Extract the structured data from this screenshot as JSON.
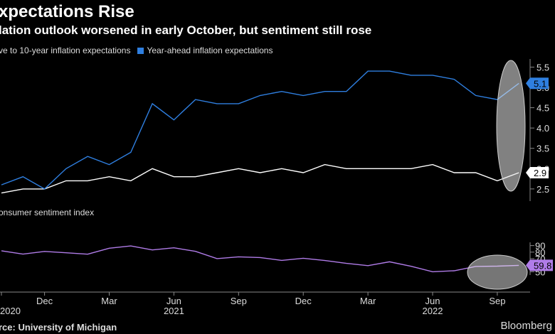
{
  "header": {
    "title": "xpectations Rise",
    "subtitle": "lation outlook worsened in early October, but sentiment still rose"
  },
  "footer": {
    "source": "rce: University of Michigan",
    "brand": "Bloomberg"
  },
  "colors": {
    "background": "#000000",
    "five_to_ten": "#ffffff",
    "year_ahead": "#2f7fe0",
    "sentiment": "#b07ce8",
    "axis": "#888888"
  },
  "chart_data": [
    {
      "type": "line",
      "legend_position": "top-left",
      "x": [
        "2020-10",
        "2020-11",
        "2020-12",
        "2021-01",
        "2021-02",
        "2021-03",
        "2021-04",
        "2021-05",
        "2021-06",
        "2021-07",
        "2021-08",
        "2021-09",
        "2021-10",
        "2021-11",
        "2021-12",
        "2022-01",
        "2022-02",
        "2022-03",
        "2022-04",
        "2022-05",
        "2022-06",
        "2022-07",
        "2022-08",
        "2022-09",
        "2022-10"
      ],
      "series": [
        {
          "name": "ve to 10-year inflation expectations",
          "color": "#ffffff",
          "end_label": "2.9",
          "values": [
            2.4,
            2.5,
            2.5,
            2.7,
            2.7,
            2.8,
            2.7,
            3.0,
            2.8,
            2.8,
            2.9,
            3.0,
            2.9,
            3.0,
            2.9,
            3.1,
            3.0,
            3.0,
            3.0,
            3.0,
            3.1,
            2.9,
            2.9,
            2.7,
            2.9
          ]
        },
        {
          "name": "Year-ahead inflation expectations",
          "color": "#2f7fe0",
          "end_label": "5.1",
          "values": [
            2.6,
            2.8,
            2.5,
            3.0,
            3.3,
            3.1,
            3.4,
            4.6,
            4.2,
            4.7,
            4.6,
            4.6,
            4.8,
            4.9,
            4.8,
            4.9,
            4.9,
            5.4,
            5.4,
            5.3,
            5.3,
            5.2,
            4.8,
            4.7,
            5.1
          ]
        }
      ],
      "y_ticks": [
        2.5,
        3.0,
        3.5,
        4.0,
        4.5,
        5.0,
        5.5
      ],
      "y_tick_labels": [
        "2.5",
        "3.0",
        "3.5",
        "4.0",
        "4.5",
        "5.0",
        "5.5"
      ],
      "ylim": [
        2.2,
        5.7
      ],
      "grid": false
    },
    {
      "type": "line",
      "panel_label": "onsumer sentiment index",
      "x": [
        "2020-10",
        "2020-11",
        "2020-12",
        "2021-01",
        "2021-02",
        "2021-03",
        "2021-04",
        "2021-05",
        "2021-06",
        "2021-07",
        "2021-08",
        "2021-09",
        "2021-10",
        "2021-11",
        "2021-12",
        "2022-01",
        "2022-02",
        "2022-03",
        "2022-04",
        "2022-05",
        "2022-06",
        "2022-07",
        "2022-08",
        "2022-09",
        "2022-10"
      ],
      "series": [
        {
          "color": "#b07ce8",
          "end_label": "59.8",
          "values": [
            82.1,
            77.0,
            81.1,
            79.0,
            76.8,
            86.0,
            89.5,
            83.4,
            86.6,
            81.2,
            70.1,
            72.8,
            71.7,
            67.4,
            70.6,
            67.2,
            62.8,
            59.4,
            65.2,
            58.4,
            50.0,
            51.5,
            58.2,
            58.6,
            59.8
          ]
        }
      ],
      "y_ticks": [
        50,
        60,
        70,
        80,
        90
      ],
      "y_tick_labels": [
        "50",
        "60",
        "70",
        "80",
        "90"
      ],
      "ylim": [
        45,
        95
      ],
      "grid": false
    }
  ],
  "x_axis": {
    "ticks": [
      {
        "month": "2020-10",
        "label": "2020"
      },
      {
        "month": "2020-12",
        "label": "Dec"
      },
      {
        "month": "2021-03",
        "label": "Mar"
      },
      {
        "month": "2021-06",
        "label": "Jun",
        "year": "2021"
      },
      {
        "month": "2021-09",
        "label": "Sep"
      },
      {
        "month": "2021-12",
        "label": "Dec"
      },
      {
        "month": "2022-03",
        "label": "Mar"
      },
      {
        "month": "2022-06",
        "label": "Jun",
        "year": "2022"
      },
      {
        "month": "2022-09",
        "label": "Sep"
      }
    ]
  }
}
